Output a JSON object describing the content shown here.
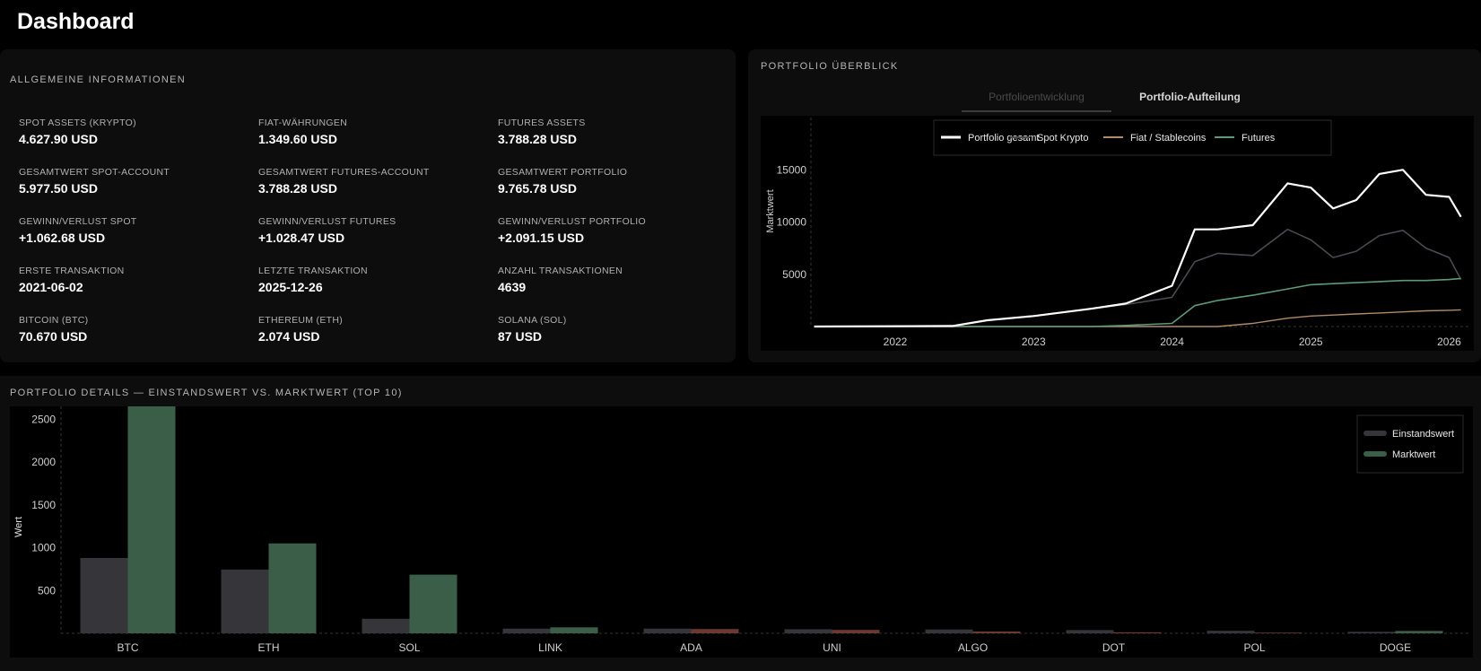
{
  "page": {
    "title": "Dashboard"
  },
  "info": {
    "section_title": "Allgemeine Informationen",
    "rows": [
      [
        {
          "label": "SPOT ASSETS (KRYPTO)",
          "value": "4.627.90 USD"
        },
        {
          "label": "FIAT-WÄHRUNGEN",
          "value": "1.349.60 USD"
        },
        {
          "label": "FUTURES ASSETS",
          "value": "3.788.28 USD"
        }
      ],
      [
        {
          "label": "GESAMTWERT SPOT-ACCOUNT",
          "value": "5.977.50 USD"
        },
        {
          "label": "GESAMTWERT FUTURES-ACCOUNT",
          "value": "3.788.28 USD"
        },
        {
          "label": "GESAMTWERT PORTFOLIO",
          "value": "9.765.78 USD"
        }
      ],
      [
        {
          "label": "GEWINN/VERLUST SPOT",
          "value": "+1.062.68 USD"
        },
        {
          "label": "GEWINN/VERLUST FUTURES",
          "value": "+1.028.47 USD"
        },
        {
          "label": "GEWINN/VERLUST PORTFOLIO",
          "value": "+2.091.15 USD"
        }
      ],
      [
        {
          "label": "ERSTE TRANSAKTION",
          "value": "2021-06-02"
        },
        {
          "label": "LETZTE TRANSAKTION",
          "value": "2025-12-26"
        },
        {
          "label": "ANZAHL TRANSAKTIONEN",
          "value": "4639"
        }
      ],
      [
        {
          "label": "BITCOIN (BTC)",
          "value": "70.670 USD"
        },
        {
          "label": "ETHEREUM (ETH)",
          "value": "2.074 USD"
        },
        {
          "label": "SOLANA (SOL)",
          "value": "87 USD"
        }
      ]
    ]
  },
  "portfolio": {
    "section_title": "Portfolio Überblick",
    "tabs": [
      {
        "label": "Portfolioentwicklung",
        "active": true
      },
      {
        "label": "Portfolio-Aufteilung",
        "active": false
      }
    ]
  },
  "details": {
    "section_title": "Portfolio Details — Einstandswert vs. Marktwert (Top 10)"
  },
  "colors": {
    "portfolio_total": "#ffffff",
    "spot": "#4a4a4e",
    "fiat": "#b08a6a",
    "futures": "#5e9a78",
    "einstand": "#35353a",
    "markt": "#3a5e48",
    "markt_negative": "#6a3a32"
  },
  "chart_data": [
    {
      "type": "line",
      "ylabel": "Marktwert",
      "xlabel": "",
      "x_ticks": [
        "2022",
        "2023",
        "2024",
        "2025",
        "2026"
      ],
      "y_ticks": [
        5000,
        10000,
        15000
      ],
      "ylim": [
        0,
        20000
      ],
      "xlim": [
        "2021-06-02",
        "2026-02-28"
      ],
      "grid": false,
      "legend_position": "top-center",
      "x": [
        "2021-06",
        "2022-06",
        "2022-09",
        "2023-01",
        "2023-06",
        "2023-09",
        "2024-01",
        "2024-03",
        "2024-05",
        "2024-08",
        "2024-11",
        "2025-01",
        "2025-03",
        "2025-05",
        "2025-07",
        "2025-09",
        "2025-11",
        "2026-01",
        "2026-02"
      ],
      "series": [
        {
          "name": "Portfolio gesamt",
          "values": [
            0,
            50,
            600,
            1000,
            1700,
            2200,
            3900,
            9300,
            9300,
            9700,
            13700,
            13300,
            11300,
            12100,
            14600,
            15000,
            12600,
            12400,
            10500
          ]
        },
        {
          "name": "Spot Krypto",
          "values": [
            0,
            50,
            600,
            1000,
            1700,
            2100,
            2800,
            6200,
            7000,
            6800,
            9300,
            8300,
            6600,
            7200,
            8700,
            9200,
            7500,
            6600,
            4500
          ]
        },
        {
          "name": "Fiat / Stablecoins",
          "values": [
            0,
            0,
            0,
            0,
            0,
            0,
            0,
            0,
            0,
            300,
            800,
            1000,
            1100,
            1200,
            1300,
            1400,
            1500,
            1550,
            1600
          ]
        },
        {
          "name": "Futures",
          "values": [
            0,
            0,
            0,
            0,
            0,
            100,
            300,
            2000,
            2500,
            3000,
            3600,
            4000,
            4100,
            4200,
            4300,
            4400,
            4400,
            4500,
            4600
          ]
        }
      ]
    },
    {
      "type": "bar",
      "ylabel": "Wert",
      "xlabel": "",
      "categories": [
        "BTC",
        "ETH",
        "SOL",
        "LINK",
        "ADA",
        "UNI",
        "ALGO",
        "DOT",
        "POL",
        "DOGE"
      ],
      "y_ticks": [
        500,
        1000,
        1500,
        2000,
        2500
      ],
      "ylim": [
        0,
        2650
      ],
      "legend_position": "top-right",
      "series": [
        {
          "name": "Einstandswert",
          "values": [
            880,
            745,
            170,
            55,
            55,
            48,
            45,
            38,
            30,
            18
          ]
        },
        {
          "name": "Marktwert",
          "values": [
            2650,
            1050,
            685,
            70,
            50,
            40,
            22,
            12,
            8,
            28
          ]
        }
      ]
    }
  ]
}
